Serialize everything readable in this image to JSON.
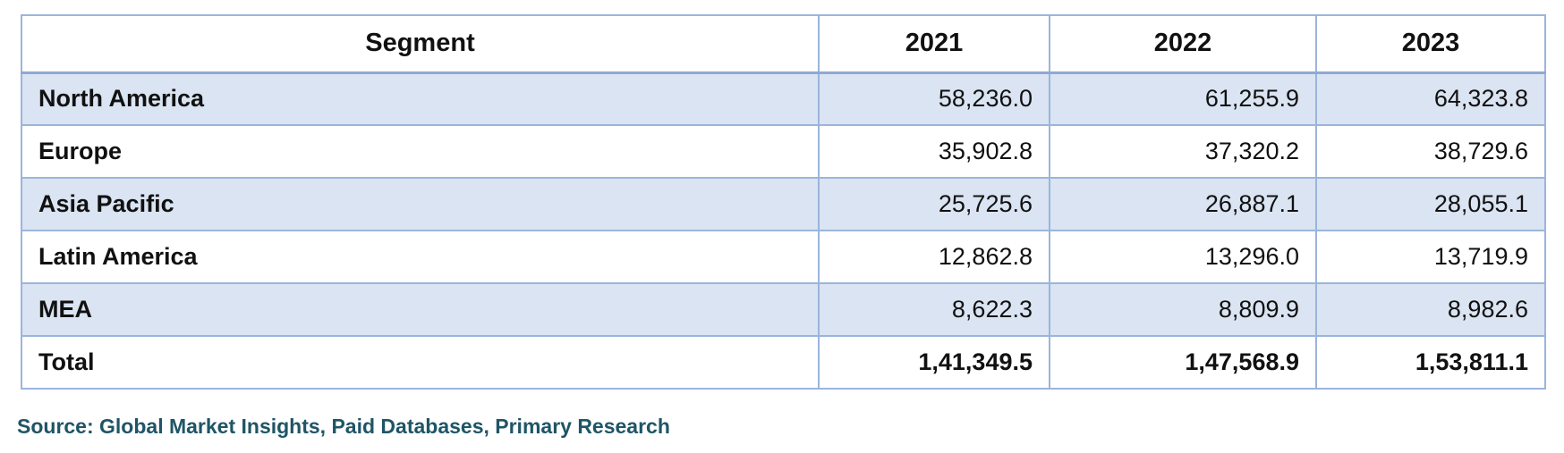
{
  "table": {
    "columns": [
      "Segment",
      "2021",
      "2022",
      "2023"
    ],
    "rows": [
      {
        "segment": "North America",
        "values": [
          "58,236.0",
          "61,255.9",
          "64,323.8"
        ]
      },
      {
        "segment": "Europe",
        "values": [
          "35,902.8",
          "37,320.2",
          "38,729.6"
        ]
      },
      {
        "segment": "Asia Pacific",
        "values": [
          "25,725.6",
          "26,887.1",
          "28,055.1"
        ]
      },
      {
        "segment": "Latin America",
        "values": [
          "12,862.8",
          "13,296.0",
          "13,719.9"
        ]
      },
      {
        "segment": "MEA",
        "values": [
          "8,622.3",
          "8,809.9",
          "8,982.6"
        ]
      },
      {
        "segment": "Total",
        "values": [
          "1,41,349.5",
          "1,47,568.9",
          "1,53,811.1"
        ]
      }
    ]
  },
  "source": "Source: Global Market Insights, Paid Databases, Primary Research",
  "colors": {
    "border": "#9ab5dc",
    "shaded_row": "#dae4f2",
    "source_text": "#1f5566"
  }
}
